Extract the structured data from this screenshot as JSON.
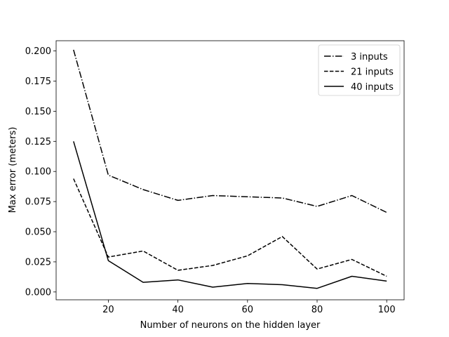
{
  "chart_data": {
    "type": "line",
    "xlabel": "Number of neurons on the hidden layer",
    "ylabel": "Max error (meters)",
    "xlim": [
      5,
      105
    ],
    "ylim": [
      -0.0065,
      0.2085
    ],
    "x": [
      10,
      20,
      30,
      40,
      50,
      60,
      70,
      80,
      90,
      100
    ],
    "x_ticks": [
      20,
      40,
      60,
      80,
      100
    ],
    "y_ticks": [
      0.0,
      0.025,
      0.05,
      0.075,
      0.1,
      0.125,
      0.15,
      0.175,
      0.2
    ],
    "y_tick_labels": [
      "0.000",
      "0.025",
      "0.050",
      "0.075",
      "0.100",
      "0.125",
      "0.150",
      "0.175",
      "0.200"
    ],
    "grid": false,
    "legend_position": "top-right",
    "series": [
      {
        "name": "3 inputs",
        "style": "dashdot",
        "color": "#000000",
        "values": [
          0.201,
          0.097,
          0.085,
          0.076,
          0.08,
          0.079,
          0.078,
          0.071,
          0.08,
          0.066
        ]
      },
      {
        "name": "21 inputs",
        "style": "dashed",
        "color": "#000000",
        "values": [
          0.094,
          0.029,
          0.034,
          0.018,
          0.022,
          0.03,
          0.046,
          0.019,
          0.027,
          0.013
        ]
      },
      {
        "name": "40 inputs",
        "style": "solid",
        "color": "#000000",
        "values": [
          0.125,
          0.026,
          0.008,
          0.01,
          0.004,
          0.007,
          0.006,
          0.003,
          0.013,
          0.009
        ]
      }
    ]
  }
}
